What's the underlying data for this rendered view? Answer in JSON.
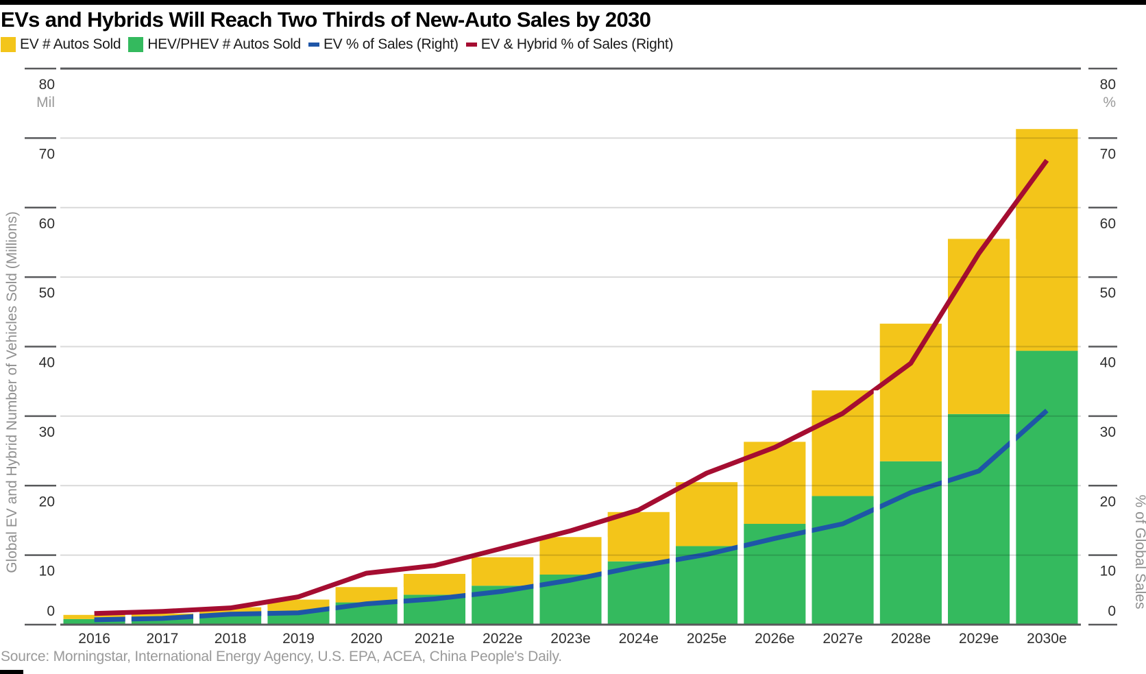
{
  "page": {
    "title": "EVs and Hybrids Will Reach Two Thirds of New-Auto Sales by 2030",
    "source": "Source: Morningstar, International Energy Agency, U.S. EPA, ACEA, China People's Daily."
  },
  "colors": {
    "ev_bar": "#F3C51A",
    "hev_bar": "#34BA5E",
    "ev_pct_line": "#1E56A7",
    "ev_hybrid_pct_line": "#A50D31",
    "grid_dark": "#58595B",
    "tick_label": "#2e2e2e",
    "muted_label": "#9a9a9a",
    "axis_title": "#8f8f8f"
  },
  "legend": {
    "items": [
      {
        "label": "EV # Autos Sold",
        "marker": "square",
        "color": "#F3C51A"
      },
      {
        "label": "HEV/PHEV # Autos Sold",
        "marker": "square",
        "color": "#34BA5E"
      },
      {
        "label": "EV % of Sales (Right)",
        "marker": "dash",
        "color": "#1E56A7"
      },
      {
        "label": "EV & Hybrid % of Sales (Right)",
        "marker": "dash",
        "color": "#A50D31"
      }
    ]
  },
  "chart_data": {
    "type": "combo: stacked bar (left axis) + 2 lines (right axis)",
    "categories": [
      "2016",
      "2017",
      "2018",
      "2019",
      "2020",
      "2021e",
      "2022e",
      "2023e",
      "2024e",
      "2025e",
      "2026e",
      "2027e",
      "2028e",
      "2029e",
      "2030e"
    ],
    "series": [
      {
        "name": "EV # Autos Sold",
        "type": "bar",
        "stack_order": "top",
        "axis": "left",
        "color": "#F3C51A",
        "values": [
          0.6,
          0.7,
          1.0,
          1.6,
          2.2,
          3.0,
          4.1,
          5.4,
          7.1,
          9.2,
          11.8,
          15.2,
          19.8,
          25.2,
          31.9
        ]
      },
      {
        "name": "HEV/PHEV # Autos Sold",
        "type": "bar",
        "stack_order": "bottom",
        "axis": "left",
        "color": "#34BA5E",
        "values": [
          0.8,
          0.9,
          1.5,
          2.0,
          3.2,
          4.3,
          5.6,
          7.2,
          9.1,
          11.3,
          14.5,
          18.5,
          23.5,
          30.3,
          39.4
        ]
      },
      {
        "name": "EV % of Sales (Right)",
        "type": "line",
        "axis": "right",
        "color": "#1E56A7",
        "values": [
          0.7,
          0.9,
          1.5,
          1.7,
          3.0,
          3.7,
          4.8,
          6.4,
          8.4,
          10.1,
          12.4,
          14.5,
          19.0,
          22.1,
          30.8
        ]
      },
      {
        "name": "EV & Hybrid % of Sales (Right)",
        "type": "line",
        "axis": "right",
        "color": "#A50D31",
        "values": [
          1.6,
          1.9,
          2.4,
          4.0,
          7.4,
          8.5,
          11.0,
          13.5,
          16.5,
          21.8,
          25.5,
          30.4,
          37.6,
          53.4,
          66.8
        ]
      }
    ],
    "left_axis": {
      "title": "Global EV and Hybrid Number of Vehicles Sold (Millions)",
      "unit_label": "Mil",
      "min": 0,
      "max": 80,
      "step": 10
    },
    "right_axis": {
      "title": "% of Global Sales",
      "unit_label": "%",
      "min": 0,
      "max": 80,
      "step": 10
    },
    "grid": true,
    "legend_position": "top"
  }
}
